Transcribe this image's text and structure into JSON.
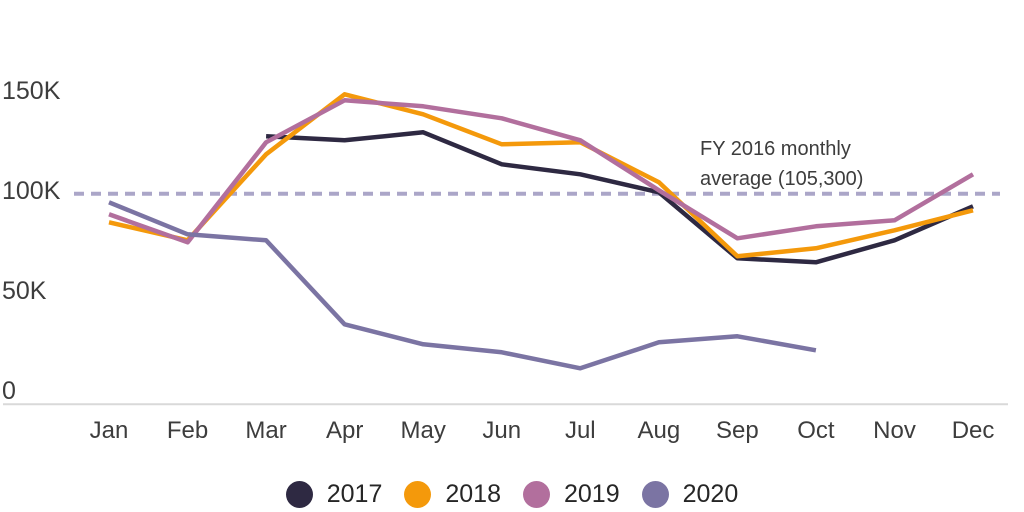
{
  "chart_data": {
    "type": "line",
    "title": "",
    "x_categories": [
      "Jan",
      "Feb",
      "Mar",
      "Apr",
      "May",
      "Jun",
      "Jul",
      "Aug",
      "Sep",
      "Oct",
      "Nov",
      "Dec"
    ],
    "values_unit": "thousands",
    "series": [
      {
        "name": "2017",
        "color": "#2e2942",
        "values": [
          null,
          null,
          134,
          132,
          136,
          120,
          115,
          106,
          73,
          71,
          82,
          99
        ]
      },
      {
        "name": "2018",
        "color": "#f4990b",
        "values": [
          91,
          82,
          125,
          155,
          145,
          130,
          131,
          111,
          74,
          78,
          87,
          97
        ]
      },
      {
        "name": "2019",
        "color": "#b26f9d",
        "values": [
          95,
          81,
          131,
          152,
          149,
          143,
          132,
          107,
          83,
          89,
          92,
          115
        ]
      },
      {
        "name": "2020",
        "color": "#7b74a3",
        "values": [
          101,
          85,
          82,
          40,
          30,
          26,
          18,
          31,
          34,
          27,
          null,
          null
        ]
      }
    ],
    "y_axis": {
      "ticks": [
        {
          "label": "150K",
          "value": 150
        },
        {
          "label": "100K",
          "value": 100
        },
        {
          "label": "50K",
          "value": 50
        },
        {
          "label": "0",
          "value": 0
        }
      ],
      "range": [
        0,
        160
      ],
      "grid": false
    },
    "reference_line": {
      "value": 105.3,
      "label": "FY 2016 monthly average (105,300)",
      "style": "dashed",
      "color": "#aba6c8"
    },
    "legend_position": "bottom"
  },
  "annotation": {
    "line1": "FY 2016 monthly",
    "line2": "average (105,300)"
  },
  "colors": {
    "axis_line": "#d9d9d9",
    "tick_text": "#3d3d3d",
    "annotation_text": "#3d3d3d",
    "legend_text": "#262626",
    "background": "#ffffff"
  }
}
